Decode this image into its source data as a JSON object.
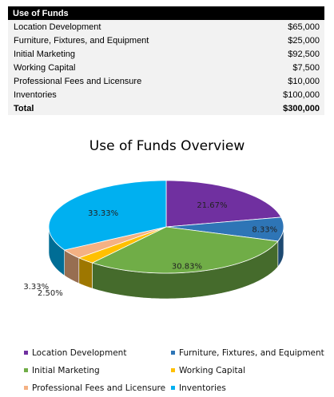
{
  "table": {
    "header": "Use of Funds",
    "rows": [
      {
        "label": "Location Development",
        "amount": "$65,000"
      },
      {
        "label": "Furniture, Fixtures, and Equipment",
        "amount": "$25,000"
      },
      {
        "label": "Initial Marketing",
        "amount": "$92,500"
      },
      {
        "label": "Working Capital",
        "amount": "$7,500"
      },
      {
        "label": "Professional Fees and Licensure",
        "amount": "$10,000"
      },
      {
        "label": "Inventories",
        "amount": "$100,000"
      }
    ],
    "total": {
      "label": "Total",
      "amount": "$300,000"
    }
  },
  "chart_data": {
    "type": "pie",
    "title": "Use of Funds Overview",
    "categories": [
      "Location Development",
      "Furniture, Fixtures, and Equipment",
      "Initial Marketing",
      "Working Capital",
      "Professional Fees and Licensure",
      "Inventories"
    ],
    "values": [
      65000,
      25000,
      92500,
      7500,
      10000,
      100000
    ],
    "data_labels": [
      "21.67%",
      "8.33%",
      "30.83%",
      "2.50%",
      "3.33%",
      "33.33%"
    ],
    "colors": [
      "#7030a0",
      "#2e75b6",
      "#70ad47",
      "#ffc000",
      "#f4b183",
      "#00b0f0"
    ],
    "legend_position": "bottom"
  }
}
